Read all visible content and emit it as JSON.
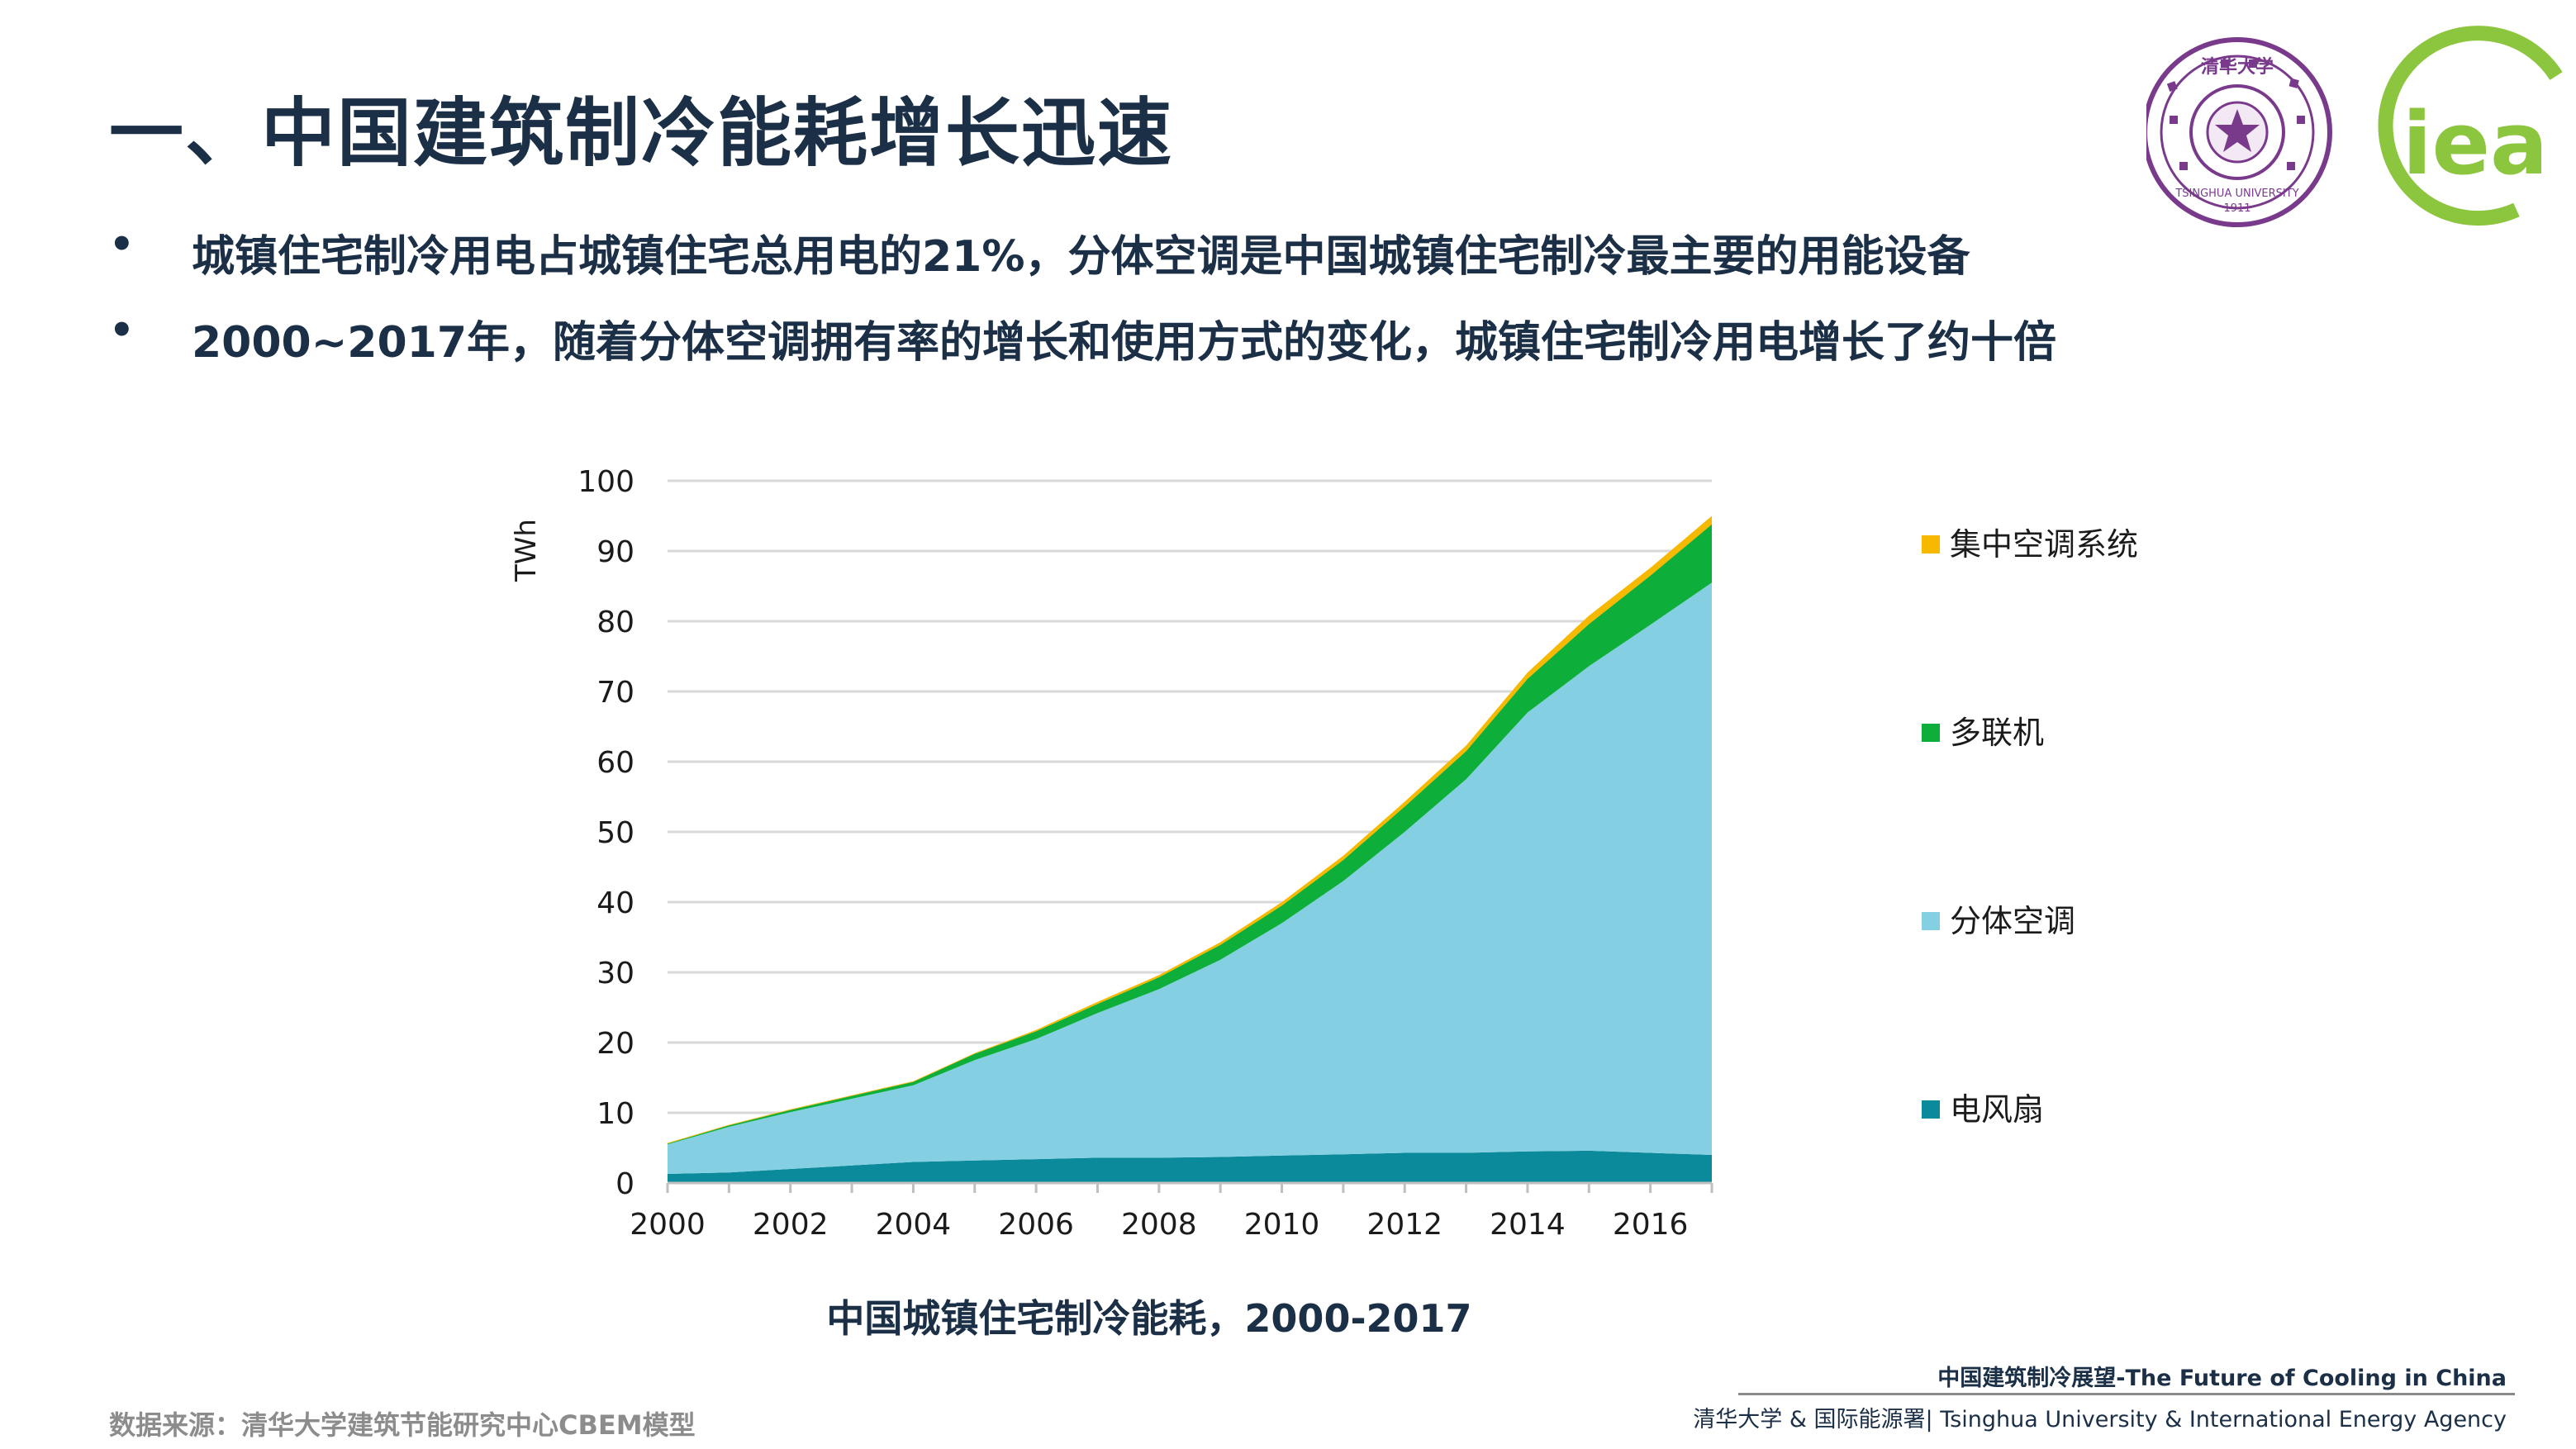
{
  "slide": {
    "title": "一、中国建筑制冷能耗增长迅速",
    "bullets": [
      "城镇住宅制冷用电占城镇住宅总用电的21%，分体空调是中国城镇住宅制冷最主要的用能设备",
      "2000~2017年，随着分体空调拥有率的增长和使用方式的变化，城镇住宅制冷用电增长了约十倍"
    ],
    "bullet_marker": "•",
    "source": "数据来源：清华大学建筑节能研究中心CBEM模型",
    "footer_title": "中国建筑制冷展望-The Future of Cooling in China",
    "footer_org": "清华大学 & 国际能源署| Tsinghua University & International Energy Agency",
    "chart_caption": "中国城镇住宅制冷能耗，2000-2017"
  },
  "logos": {
    "tsinghua_seal_icon": "tsinghua-university-seal",
    "tsinghua_text_top": "清华大学",
    "tsinghua_text_bottom": "TSINGHUA UNIVERSITY",
    "tsinghua_year": "1911",
    "iea_text": "iea"
  },
  "colors": {
    "fan": "#0a8a9a",
    "split_ac": "#84cfe2",
    "vrf": "#0dae3a",
    "central": "#f7b800",
    "grid": "#d9d9d9",
    "text": "#1b2f47",
    "tsinghua_purple": "#7a3a8c",
    "iea_green": "#8cc63f"
  },
  "chart_data": {
    "type": "area",
    "stacked": true,
    "ylabel": "TWh",
    "ylim": [
      0,
      100
    ],
    "yticks": [
      0,
      10,
      20,
      30,
      40,
      50,
      60,
      70,
      80,
      90,
      100
    ],
    "xticks": [
      2000,
      2002,
      2004,
      2006,
      2008,
      2010,
      2012,
      2014,
      2016
    ],
    "x": [
      2000,
      2001,
      2002,
      2003,
      2004,
      2005,
      2006,
      2007,
      2008,
      2009,
      2010,
      2011,
      2012,
      2013,
      2014,
      2015,
      2016,
      2017
    ],
    "grid": true,
    "legend_position": "right",
    "series": [
      {
        "name": "电风扇",
        "color": "#0a8a9a",
        "values": [
          1.3,
          1.5,
          2.0,
          2.5,
          3.0,
          3.2,
          3.4,
          3.6,
          3.6,
          3.7,
          3.9,
          4.1,
          4.3,
          4.3,
          4.5,
          4.6,
          4.3,
          4.0
        ]
      },
      {
        "name": "分体空调",
        "color": "#84cfe2",
        "values": [
          4.2,
          6.5,
          8.1,
          9.5,
          10.9,
          14.3,
          17.1,
          20.6,
          24.0,
          28.1,
          33.1,
          38.9,
          45.7,
          53.2,
          62.5,
          69.0,
          75.2,
          81.5
        ]
      },
      {
        "name": "多联机",
        "color": "#0dae3a",
        "values": [
          0.1,
          0.2,
          0.3,
          0.4,
          0.5,
          0.9,
          1.1,
          1.3,
          1.7,
          2.1,
          2.5,
          3.0,
          3.6,
          4.0,
          4.8,
          6.0,
          7.0,
          8.3
        ]
      },
      {
        "name": "集中空调系统",
        "color": "#f7b800",
        "values": [
          0.1,
          0.1,
          0.1,
          0.1,
          0.1,
          0.1,
          0.2,
          0.3,
          0.3,
          0.4,
          0.5,
          0.6,
          0.7,
          0.8,
          0.9,
          1.2,
          1.1,
          1.2
        ]
      }
    ]
  }
}
